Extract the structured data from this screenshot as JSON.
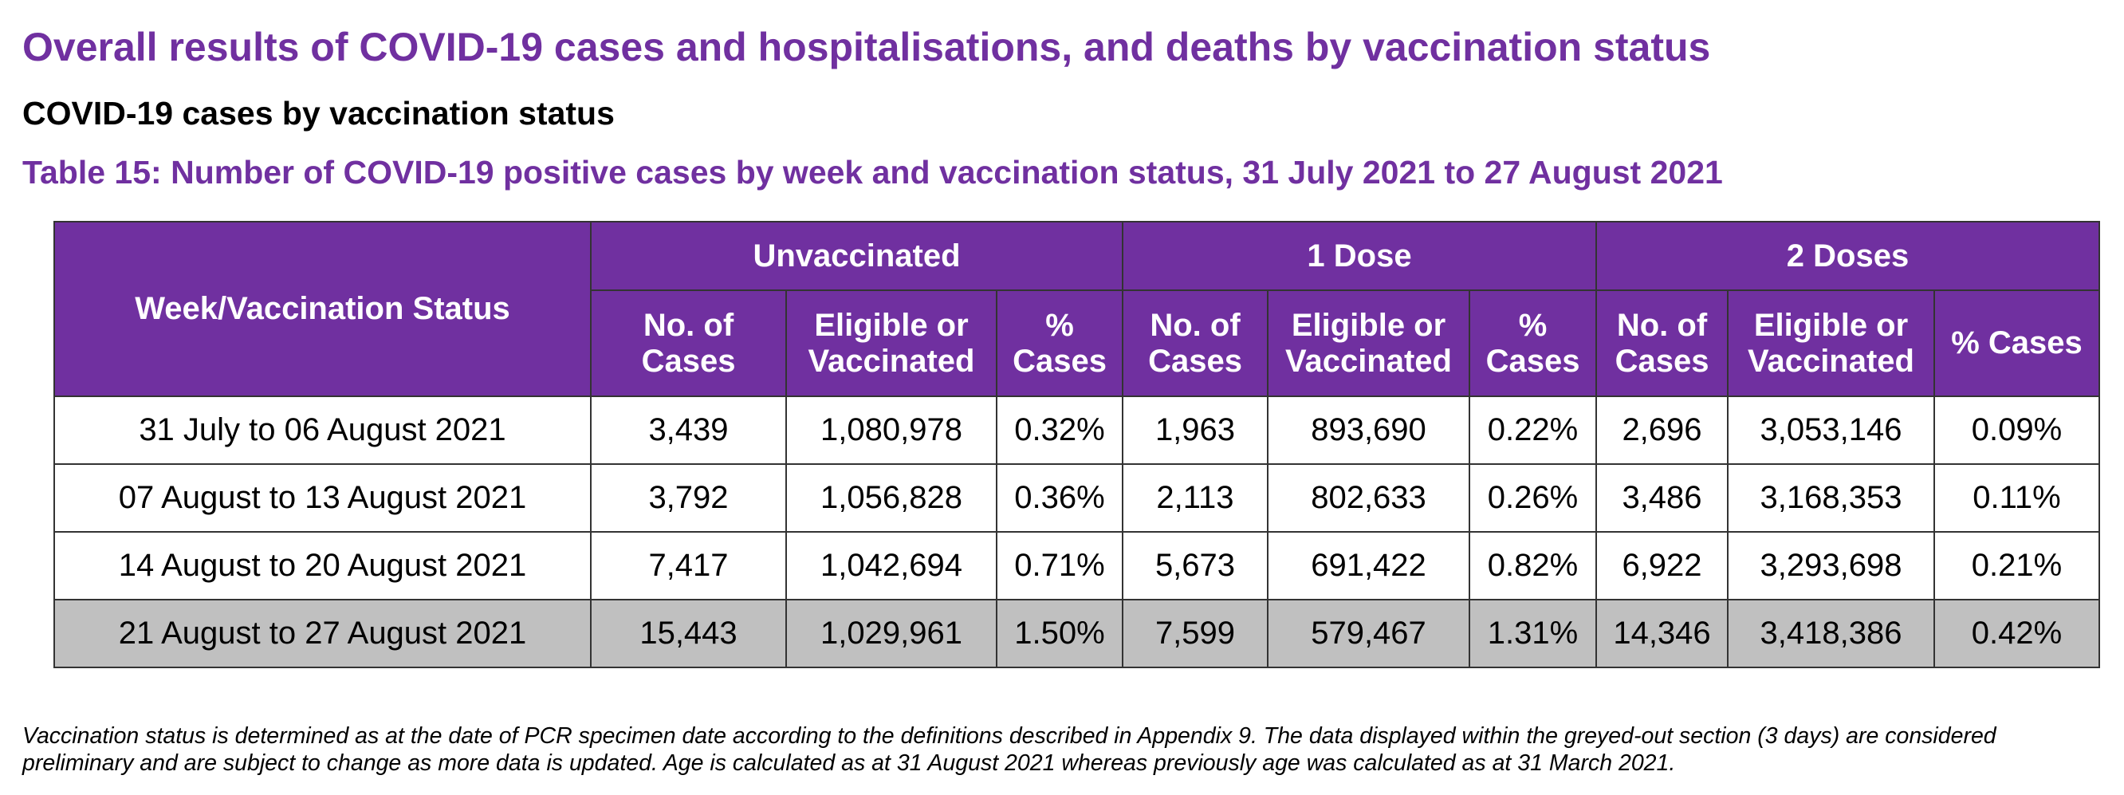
{
  "heading": {
    "title": "Overall results of COVID-19 cases and hospitalisations, and deaths by vaccination status",
    "subtitle": "COVID-19 cases by vaccination status",
    "caption": "Table 15: Number of COVID-19 positive cases by week and vaccination status, 31 July 2021 to 27 August 2021"
  },
  "colors": {
    "accent_purple": "#7030A0",
    "preliminary_row_grey": "#C0C0C0",
    "border": "#333333"
  },
  "table": {
    "row_header_label": "Week/Vaccination Status",
    "groups": [
      {
        "label": "Unvaccinated",
        "columns": [
          "No. of Cases",
          "Eligible or Vaccinated",
          "% Cases"
        ]
      },
      {
        "label": "1 Dose",
        "columns": [
          "No. of Cases",
          "Eligible or Vaccinated",
          "% Cases"
        ]
      },
      {
        "label": "2 Doses",
        "columns": [
          "No. of Cases",
          "Eligible or Vaccinated",
          "% Cases"
        ]
      }
    ],
    "subheaders": {
      "no_of": "No. of",
      "cases": "Cases",
      "eligible_or": "Eligible or",
      "vaccinated": "Vaccinated",
      "pct": "%",
      "pct_cases": "% Cases"
    },
    "rows": [
      {
        "week": "31 July to 06 August 2021",
        "preliminary": false,
        "values": [
          "3,439",
          "1,080,978",
          "0.32%",
          "1,963",
          "893,690",
          "0.22%",
          "2,696",
          "3,053,146",
          "0.09%"
        ]
      },
      {
        "week": "07 August to 13 August 2021",
        "preliminary": false,
        "values": [
          "3,792",
          "1,056,828",
          "0.36%",
          "2,113",
          "802,633",
          "0.26%",
          "3,486",
          "3,168,353",
          "0.11%"
        ]
      },
      {
        "week": "14 August to 20 August 2021",
        "preliminary": false,
        "values": [
          "7,417",
          "1,042,694",
          "0.71%",
          "5,673",
          "691,422",
          "0.82%",
          "6,922",
          "3,293,698",
          "0.21%"
        ]
      },
      {
        "week": "21 August to 27 August 2021",
        "preliminary": true,
        "values": [
          "15,443",
          "1,029,961",
          "1.50%",
          "7,599",
          "579,467",
          "1.31%",
          "14,346",
          "3,418,386",
          "0.42%"
        ]
      }
    ]
  },
  "footnote": {
    "line1": "Vaccination status is determined as at the date of PCR specimen date according to the definitions described in Appendix 9. The data displayed within the greyed-out section (3 days) are considered",
    "line2": "preliminary and are subject to change as more data is updated. Age is calculated as at 31 August 2021 whereas previously age was calculated as at 31 March 2021."
  }
}
